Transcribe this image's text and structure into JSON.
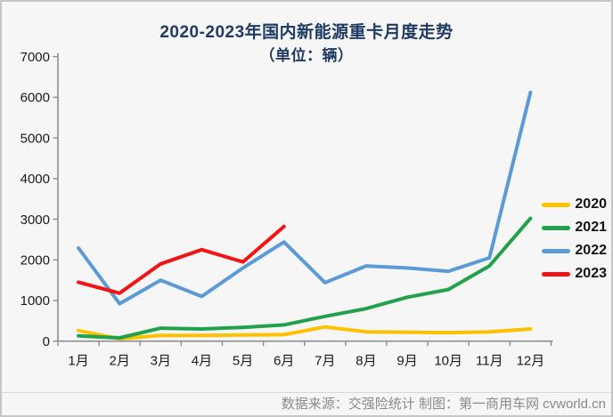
{
  "window": {
    "background": "#f6f6f6",
    "border_color": "#c6c6c6"
  },
  "title": {
    "line1": "2020-2023年国内新能源重卡月度走势",
    "line2": "（单位：辆）",
    "color": "#1f3a63"
  },
  "footer": {
    "text": "数据来源：交强险统计  制图：第一商用车网 cvworld.cn",
    "color": "#8a8a8a"
  },
  "chart_data": {
    "type": "line",
    "title": "2020-2023年国内新能源重卡月度走势（单位：辆）",
    "categories": [
      "1月",
      "2月",
      "3月",
      "4月",
      "5月",
      "6月",
      "7月",
      "8月",
      "9月",
      "10月",
      "11月",
      "12月"
    ],
    "series": [
      {
        "name": "2020",
        "color": "#FFC000",
        "values": [
          260,
          60,
          140,
          140,
          150,
          160,
          350,
          230,
          220,
          210,
          230,
          300
        ]
      },
      {
        "name": "2021",
        "color": "#21A14B",
        "values": [
          130,
          80,
          320,
          300,
          340,
          400,
          610,
          800,
          1080,
          1270,
          1850,
          3020
        ]
      },
      {
        "name": "2022",
        "color": "#5B9BD5",
        "values": [
          2290,
          920,
          1500,
          1100,
          1800,
          2440,
          1440,
          1850,
          1800,
          1720,
          2050,
          6120
        ]
      },
      {
        "name": "2023",
        "color": "#F01414",
        "values": [
          1450,
          1180,
          1900,
          2250,
          1950,
          2820
        ]
      }
    ],
    "ylim": [
      0,
      7000
    ],
    "y_ticks": [
      0,
      1000,
      2000,
      3000,
      4000,
      5000,
      6000,
      7000
    ],
    "xlabel": "",
    "ylabel": "",
    "grid": false,
    "legend_position": "right",
    "axis_color": "#8e8e8e",
    "tick_label_color": "#1a1a1a"
  }
}
